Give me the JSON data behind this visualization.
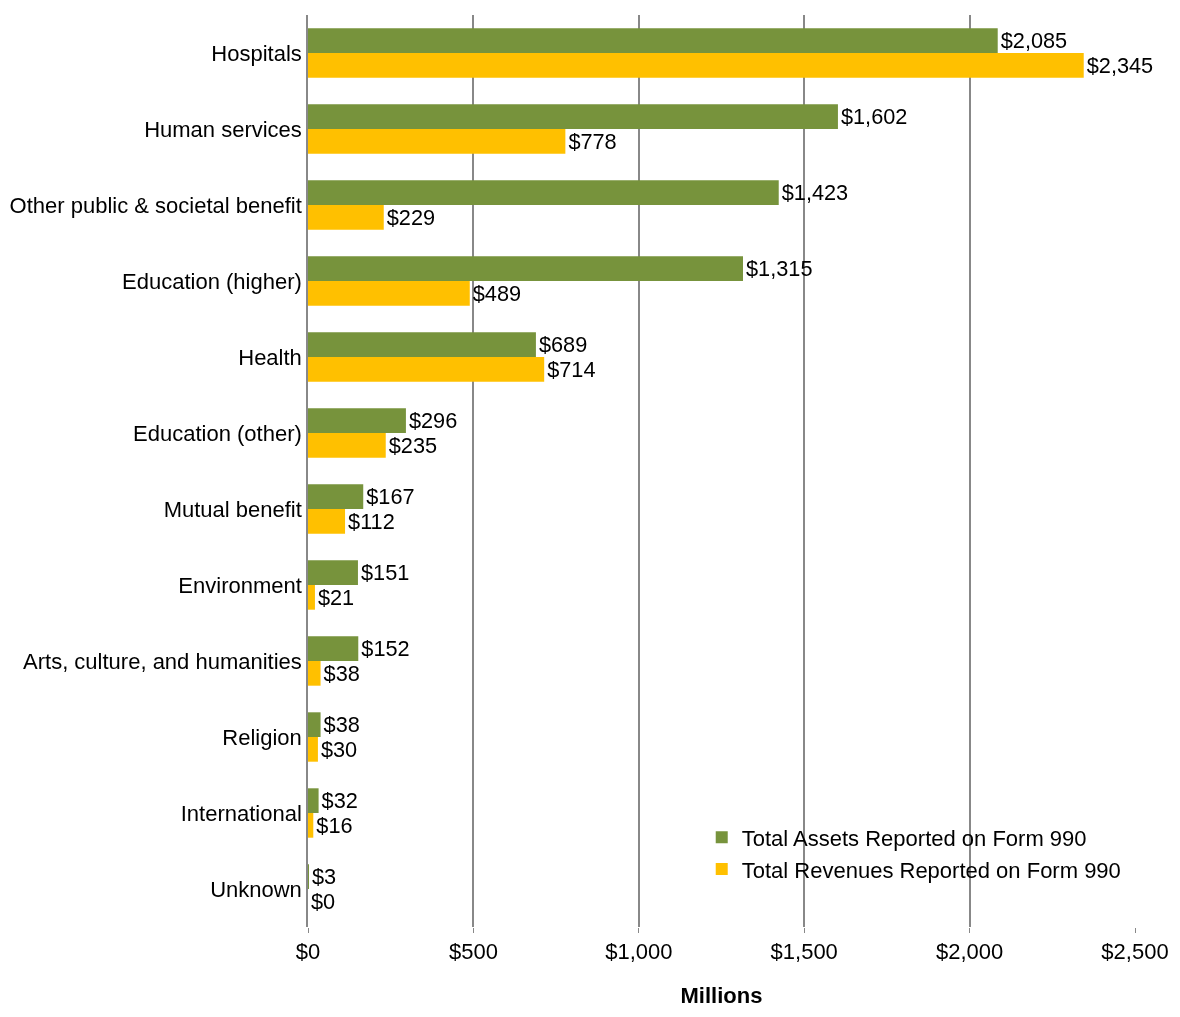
{
  "chart_data": {
    "type": "bar",
    "orientation": "horizontal",
    "xlabel": "Millions",
    "categories": [
      "Hospitals",
      "Human services",
      "Other public & societal benefit",
      "Education (higher)",
      "Health",
      "Education (other)",
      "Mutual benefit",
      "Environment",
      "Arts, culture, and humanities",
      "Religion",
      "International",
      "Unknown"
    ],
    "series": [
      {
        "name": "Total Assets Reported on Form 990",
        "color": "#77933c",
        "values": [
          2085,
          1602,
          1423,
          1315,
          689,
          296,
          167,
          151,
          152,
          38,
          32,
          3
        ],
        "value_labels": [
          "$2,085",
          "$1,602",
          "$1,423",
          "$1,315",
          "$689",
          "$296",
          "$167",
          "$151",
          "$152",
          "$38",
          "$32",
          "$3"
        ]
      },
      {
        "name": "Total Revenues Reported on Form 990",
        "color": "#ffc000",
        "values": [
          2345,
          778,
          229,
          489,
          714,
          235,
          112,
          21,
          38,
          30,
          16,
          0
        ],
        "value_labels": [
          "$2,345",
          "$778",
          "$229",
          "$489",
          "$714",
          "$235",
          "$112",
          "$21",
          "$38",
          "$30",
          "$16",
          "$0"
        ]
      }
    ],
    "xlim": [
      0,
      2500
    ],
    "xticks": [
      {
        "value": 0,
        "label": "$0"
      },
      {
        "value": 500,
        "label": "$500"
      },
      {
        "value": 1000,
        "label": "$1,000"
      },
      {
        "value": 1500,
        "label": "$1,500"
      },
      {
        "value": 2000,
        "label": "$2,000"
      },
      {
        "value": 2500,
        "label": "$2,500"
      }
    ],
    "grid": "x",
    "legend": "bottom right"
  }
}
